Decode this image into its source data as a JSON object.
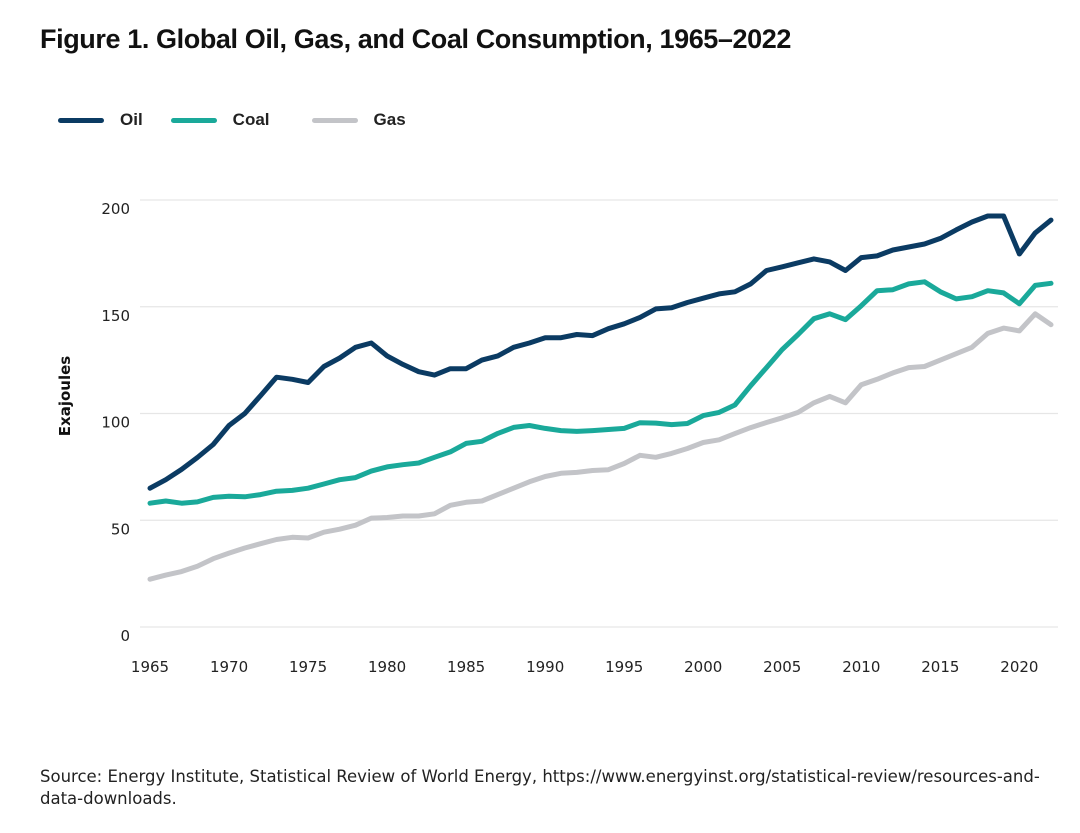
{
  "figure": {
    "title": "Figure 1. Global Oil, Gas, and Coal Consumption, 1965–2022",
    "source": "Source: Energy Institute, Statistical Review of World Energy, https://www.energyinst.org/statistical-review/resources-and-data-downloads."
  },
  "legend": [
    {
      "name": "Oil",
      "color": "#0b3b63"
    },
    {
      "name": "Coal",
      "color": "#1aa99a"
    },
    {
      "name": "Gas",
      "color": "#c3c4c8"
    }
  ],
  "chart_data": {
    "type": "line",
    "title": "Figure 1. Global Oil, Gas, and Coal Consumption, 1965–2022",
    "xlabel": "",
    "ylabel": "Exajoules",
    "xlim": [
      1965,
      2022
    ],
    "ylim": [
      0,
      200
    ],
    "yticks": [
      0,
      50,
      100,
      150,
      200
    ],
    "xticks": [
      1965,
      1970,
      1975,
      1980,
      1985,
      1990,
      1995,
      2000,
      2005,
      2010,
      2015,
      2020
    ],
    "grid": "horizontal",
    "legend_position": "top-left",
    "x": [
      1965,
      1966,
      1967,
      1968,
      1969,
      1970,
      1971,
      1972,
      1973,
      1974,
      1975,
      1976,
      1977,
      1978,
      1979,
      1980,
      1981,
      1982,
      1983,
      1984,
      1985,
      1986,
      1987,
      1988,
      1989,
      1990,
      1991,
      1992,
      1993,
      1994,
      1995,
      1996,
      1997,
      1998,
      1999,
      2000,
      2001,
      2002,
      2003,
      2004,
      2005,
      2006,
      2007,
      2008,
      2009,
      2010,
      2011,
      2012,
      2013,
      2014,
      2015,
      2016,
      2017,
      2018,
      2019,
      2020,
      2021,
      2022
    ],
    "series": [
      {
        "name": "Oil",
        "color": "#0b3b63",
        "values": [
          65,
          69,
          73.8,
          79.4,
          85.5,
          94.4,
          100,
          108.4,
          117,
          116,
          114.5,
          122,
          126,
          131,
          133,
          127,
          123,
          119.6,
          118,
          121,
          121,
          125,
          127,
          131,
          133,
          135.5,
          135.5,
          137,
          136.5,
          139.7,
          142,
          145,
          149,
          149.5,
          152,
          154,
          156,
          157,
          160.7,
          167,
          168.7,
          170.6,
          172.4,
          171,
          167,
          173,
          173.8,
          176.6,
          178,
          179.4,
          182,
          186,
          189.7,
          192.5,
          192.5,
          174.7,
          184.6,
          190.6
        ]
      },
      {
        "name": "Coal",
        "color": "#1aa99a",
        "values": [
          58,
          59,
          58,
          58.6,
          60.7,
          61.2,
          61,
          62,
          63.6,
          64,
          65,
          67,
          69,
          70,
          73,
          75,
          76,
          76.8,
          79.5,
          82,
          86,
          87,
          90.7,
          93.5,
          94.4,
          93,
          92,
          91.6,
          92,
          92.5,
          93,
          95.7,
          95.5,
          94.8,
          95.3,
          99,
          100.5,
          104,
          113,
          121.5,
          130,
          137,
          144.4,
          146.7,
          144,
          150.5,
          157.5,
          158,
          160.7,
          161.7,
          157,
          153.7,
          154.7,
          157.5,
          156.5,
          151.4,
          160,
          161
        ]
      },
      {
        "name": "Gas",
        "color": "#c3c4c8",
        "values": [
          22.4,
          24.3,
          26,
          28.5,
          32,
          34.6,
          37,
          39,
          41,
          42,
          41.7,
          44.4,
          45.8,
          47.7,
          51,
          51.3,
          52,
          52,
          53,
          57,
          58.4,
          59,
          62,
          65,
          68,
          70.5,
          72,
          72.4,
          73.3,
          73.7,
          76.6,
          80.4,
          79.5,
          81.3,
          83.6,
          86.4,
          87.7,
          90.6,
          93.4,
          95.8,
          98,
          100.5,
          105,
          108,
          105,
          113.5,
          116,
          119,
          121.5,
          122,
          125,
          128,
          131,
          137.5,
          140,
          138.7,
          146.7,
          141.6
        ]
      }
    ]
  }
}
